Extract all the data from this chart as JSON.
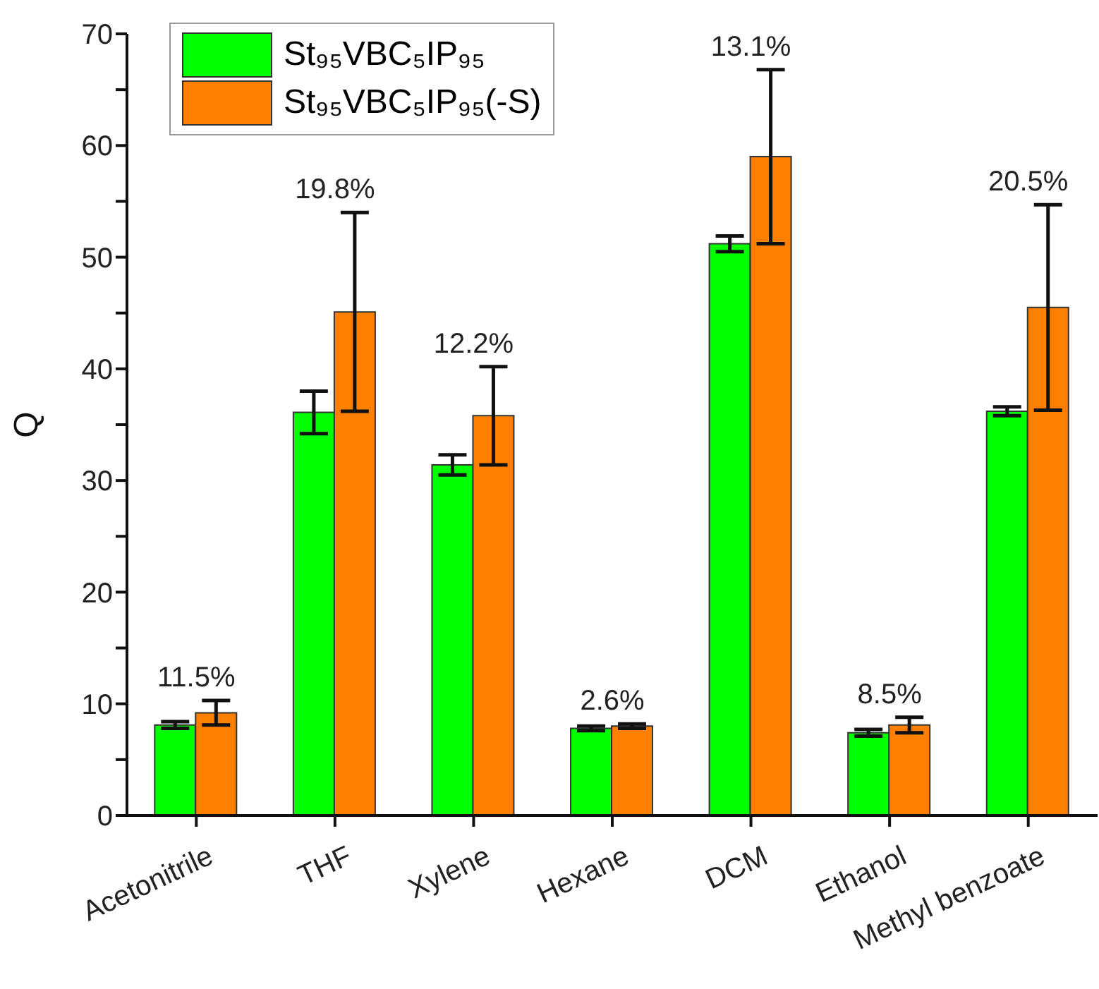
{
  "chart_data": {
    "type": "bar",
    "ylabel": "Q",
    "categories": [
      "Acetonitrile",
      "THF",
      "Xylene",
      "Hexane",
      "DCM",
      "Ethanol",
      "Methyl benzoate"
    ],
    "series": [
      {
        "name": "St₉₅VBC₅IP₉₅",
        "color": "#00ff00",
        "values": [
          8.1,
          36.1,
          31.4,
          7.8,
          51.2,
          7.4,
          36.2
        ],
        "errors": [
          0.3,
          1.9,
          0.9,
          0.2,
          0.7,
          0.3,
          0.4
        ]
      },
      {
        "name": "St₉₅VBC₅IP₉₅(-S)",
        "color": "#ff8000",
        "values": [
          9.2,
          45.1,
          35.8,
          8.0,
          59.0,
          8.1,
          45.5
        ],
        "errors": [
          1.1,
          8.9,
          4.4,
          0.2,
          7.8,
          0.7,
          9.2
        ]
      }
    ],
    "ylim": [
      0,
      70
    ],
    "yticks": [
      0,
      {
        "value": 5,
        "label": null
      },
      10,
      {
        "value": 15,
        "label": null
      },
      20,
      {
        "value": 25,
        "label": null
      },
      30,
      {
        "value": 35,
        "label": null
      },
      40,
      {
        "value": 45,
        "label": null
      },
      50,
      {
        "value": 55,
        "label": null
      },
      60,
      {
        "value": 65,
        "label": null
      },
      70
    ],
    "annotations": [
      {
        "text": "11.5%",
        "x": "Acetonitrile",
        "y": 10.3
      },
      {
        "text": "19.8%",
        "x": "THF",
        "y": 54.0
      },
      {
        "text": "12.2%",
        "x": "Xylene",
        "y": 40.2
      },
      {
        "text": "2.6%",
        "x": "Hexane",
        "y": 8.2
      },
      {
        "text": "13.1%",
        "x": "DCM",
        "y": 66.8
      },
      {
        "text": "8.5%",
        "x": "Ethanol",
        "y": 8.8
      },
      {
        "text": "20.5%",
        "x": "Methyl benzoate",
        "y": 54.7
      }
    ],
    "legend": "top left",
    "grid": false
  }
}
